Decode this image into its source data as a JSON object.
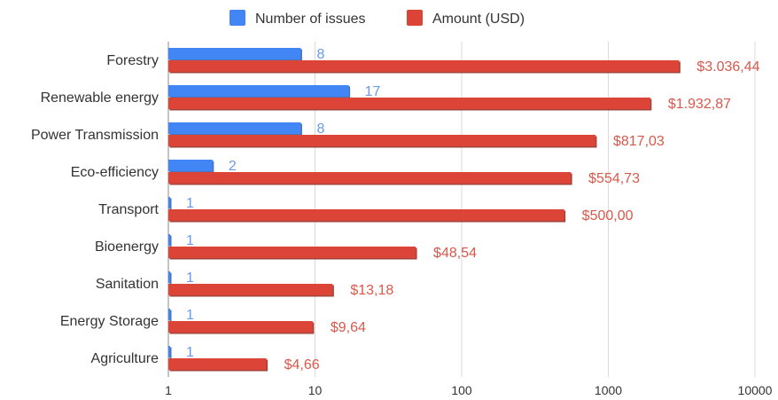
{
  "chart_data": {
    "type": "bar",
    "orientation": "horizontal",
    "x_scale": "log",
    "xlim": [
      1,
      10000
    ],
    "x_ticks": [
      "1",
      "10",
      "100",
      "1000",
      "10000"
    ],
    "grid": true,
    "legend_position": "top",
    "categories": [
      "Forestry",
      "Renewable energy",
      "Power Transmission",
      "Eco-efficiency",
      "Transport",
      "Bioenergy",
      "Sanitation",
      "Energy Storage",
      "Agriculture"
    ],
    "series": [
      {
        "name": "Number of issues",
        "color": "#4285f4",
        "label_color": "#6a9ae8",
        "values": [
          8,
          17,
          8,
          2,
          1,
          1,
          1,
          1,
          1
        ],
        "labels": [
          "8",
          "17",
          "8",
          "2",
          "1",
          "1",
          "1",
          "1",
          "1"
        ]
      },
      {
        "name": "Amount (USD)",
        "color": "#db4437",
        "label_color": "#d9584c",
        "values": [
          3036.44,
          1932.87,
          817.03,
          554.73,
          500.0,
          48.54,
          13.18,
          9.64,
          4.66
        ],
        "labels": [
          "$3.036,44",
          "$1.932,87",
          "$817,03",
          "$554,73",
          "$500,00",
          "$48,54",
          "$13,18",
          "$9,64",
          "$4,66"
        ]
      }
    ]
  }
}
